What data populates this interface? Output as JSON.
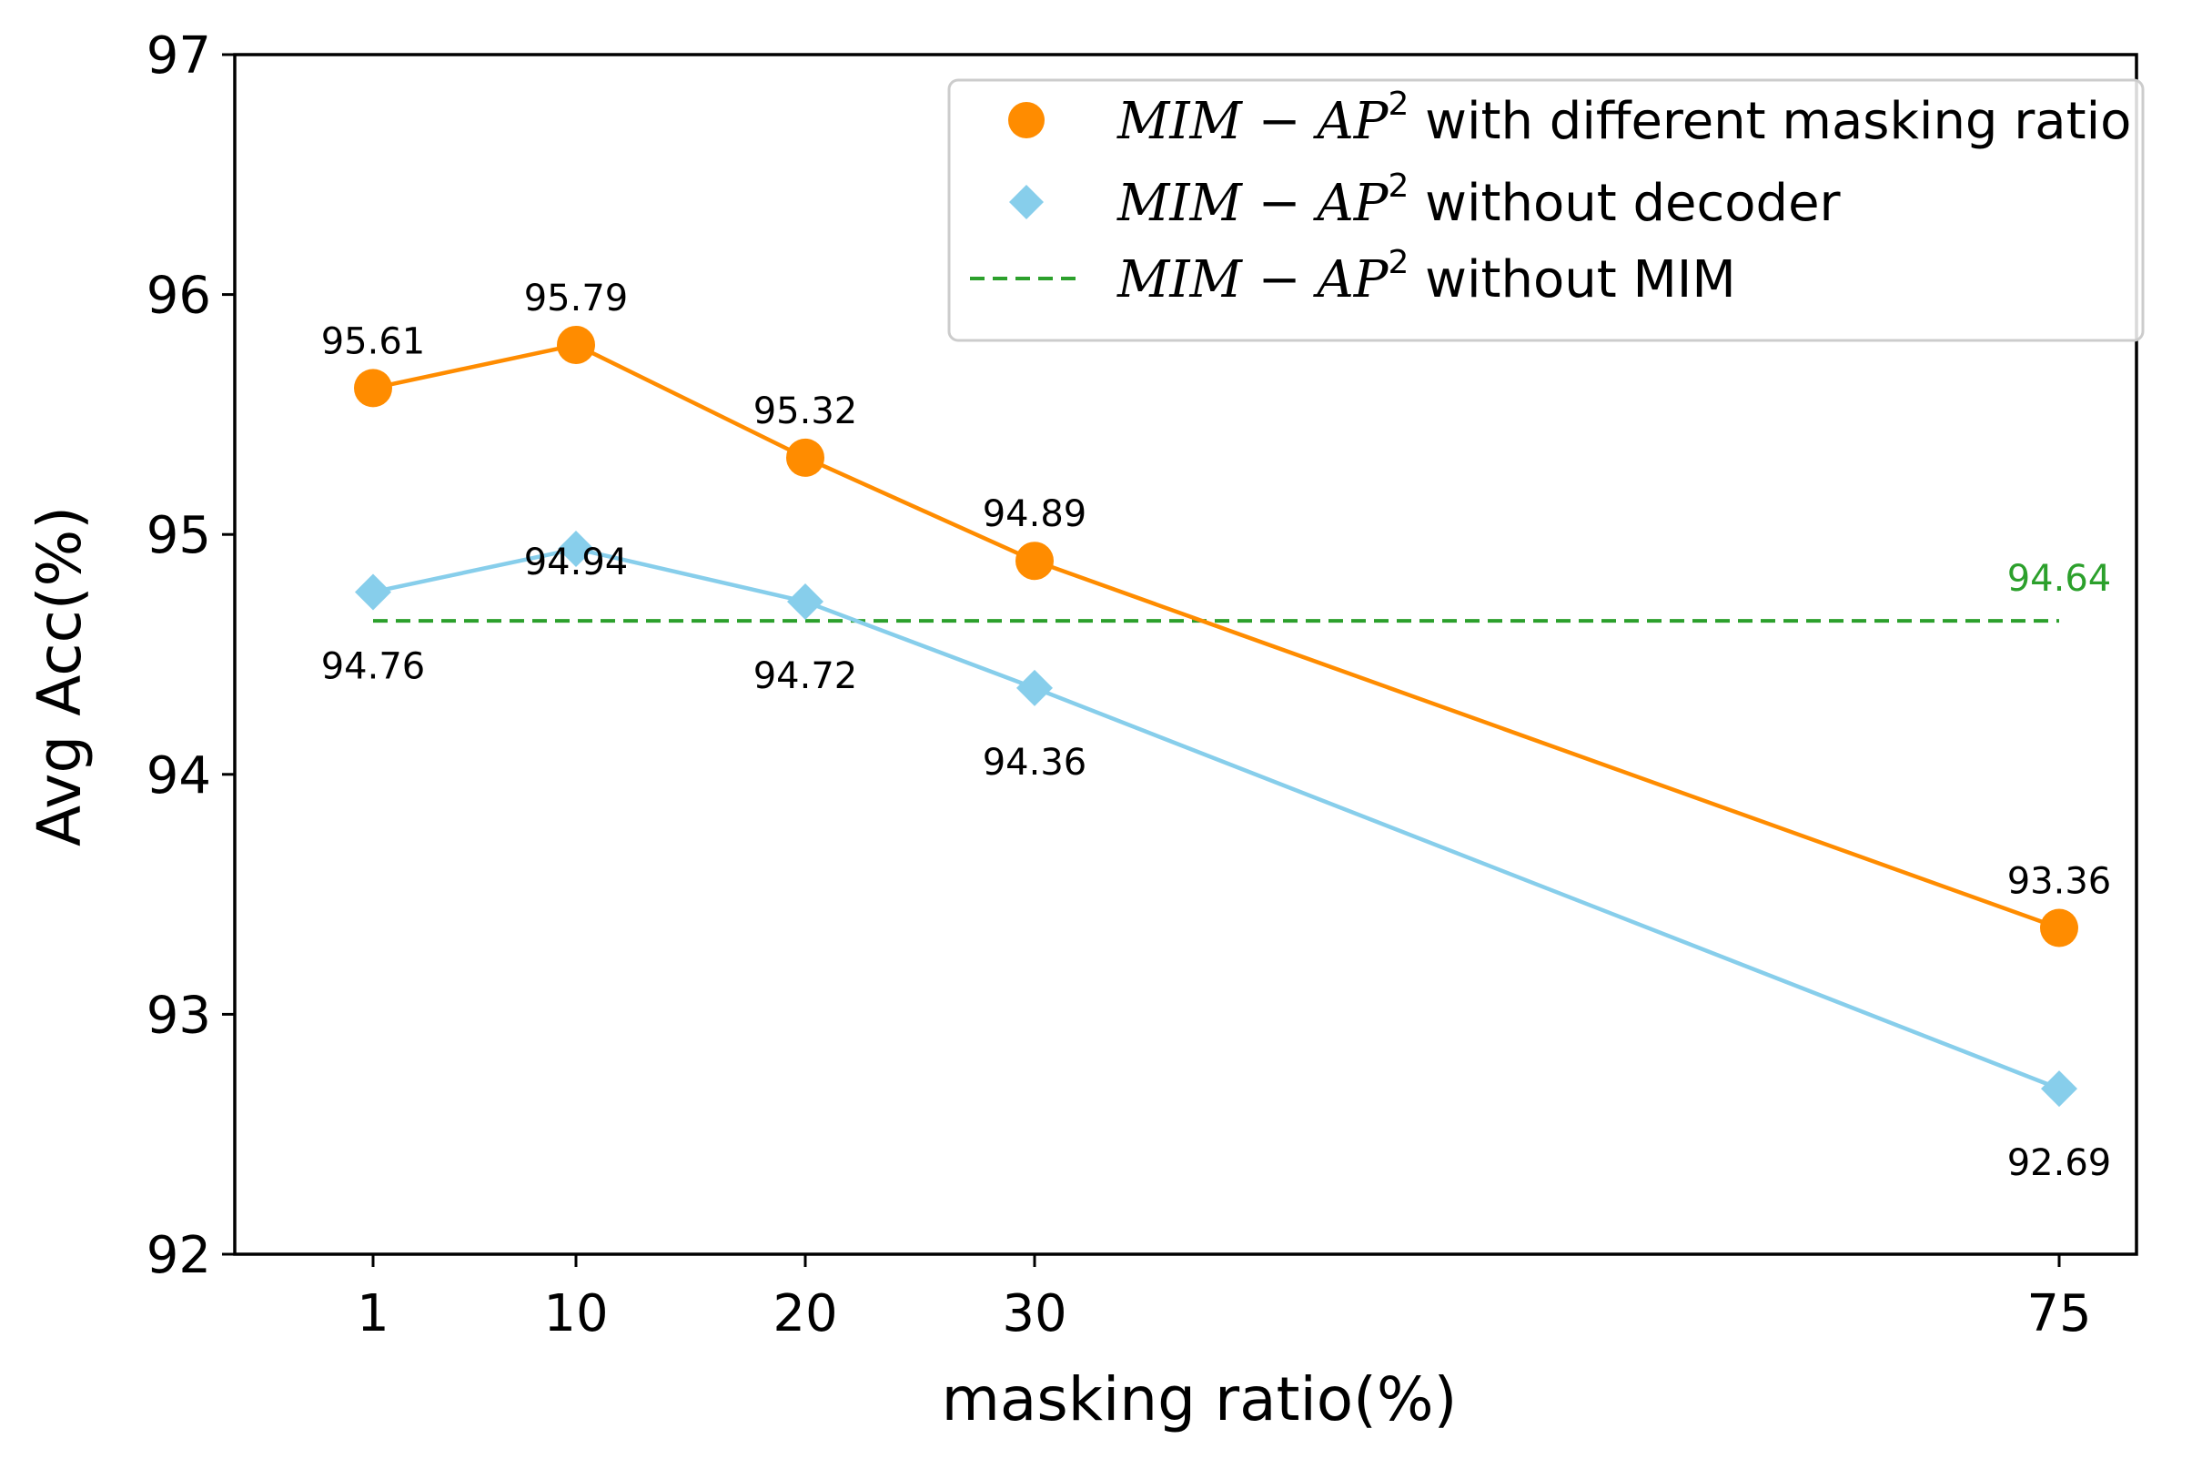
{
  "chart_data": {
    "type": "line",
    "title": "",
    "xlabel": "masking ratio(%)",
    "ylabel": "Avg Acc(%)",
    "ylim": [
      92,
      97
    ],
    "yticks": [
      "92",
      "93",
      "94",
      "95",
      "96",
      "97"
    ],
    "x": [
      1,
      10,
      20,
      30,
      75
    ],
    "xticks": [
      "1",
      "10",
      "20",
      "30",
      "75"
    ],
    "legend_position": "top-right",
    "series": [
      {
        "name": "MIM − AP² with different masking ratio",
        "legend_math": "MIM − AP",
        "legend_sup": "2",
        "legend_suffix": "with different masking ratio",
        "marker": "circle",
        "color": "#ff8c00",
        "values": [
          95.61,
          95.79,
          95.32,
          94.89,
          93.36
        ],
        "labels": [
          "95.61",
          "95.79",
          "95.32",
          "94.89",
          "93.36"
        ],
        "label_side": "above"
      },
      {
        "name": "MIM − AP² without decoder",
        "legend_math": "MIM − AP",
        "legend_sup": "2",
        "legend_suffix": "without decoder",
        "marker": "diamond",
        "color": "#87ceeb",
        "values": [
          94.76,
          94.94,
          94.72,
          94.36,
          92.69
        ],
        "labels": [
          "94.76",
          "94.94",
          "94.72",
          "94.36",
          "92.69"
        ],
        "label_side": "below"
      }
    ],
    "reference_line": {
      "name": "MIM − AP² without MIM",
      "legend_math": "MIM − AP",
      "legend_sup": "2",
      "legend_suffix": "without MIM",
      "value": 94.64,
      "label": "94.64",
      "x_range": [
        1,
        75
      ],
      "style": "dashed",
      "color": "#2ca02c"
    }
  }
}
